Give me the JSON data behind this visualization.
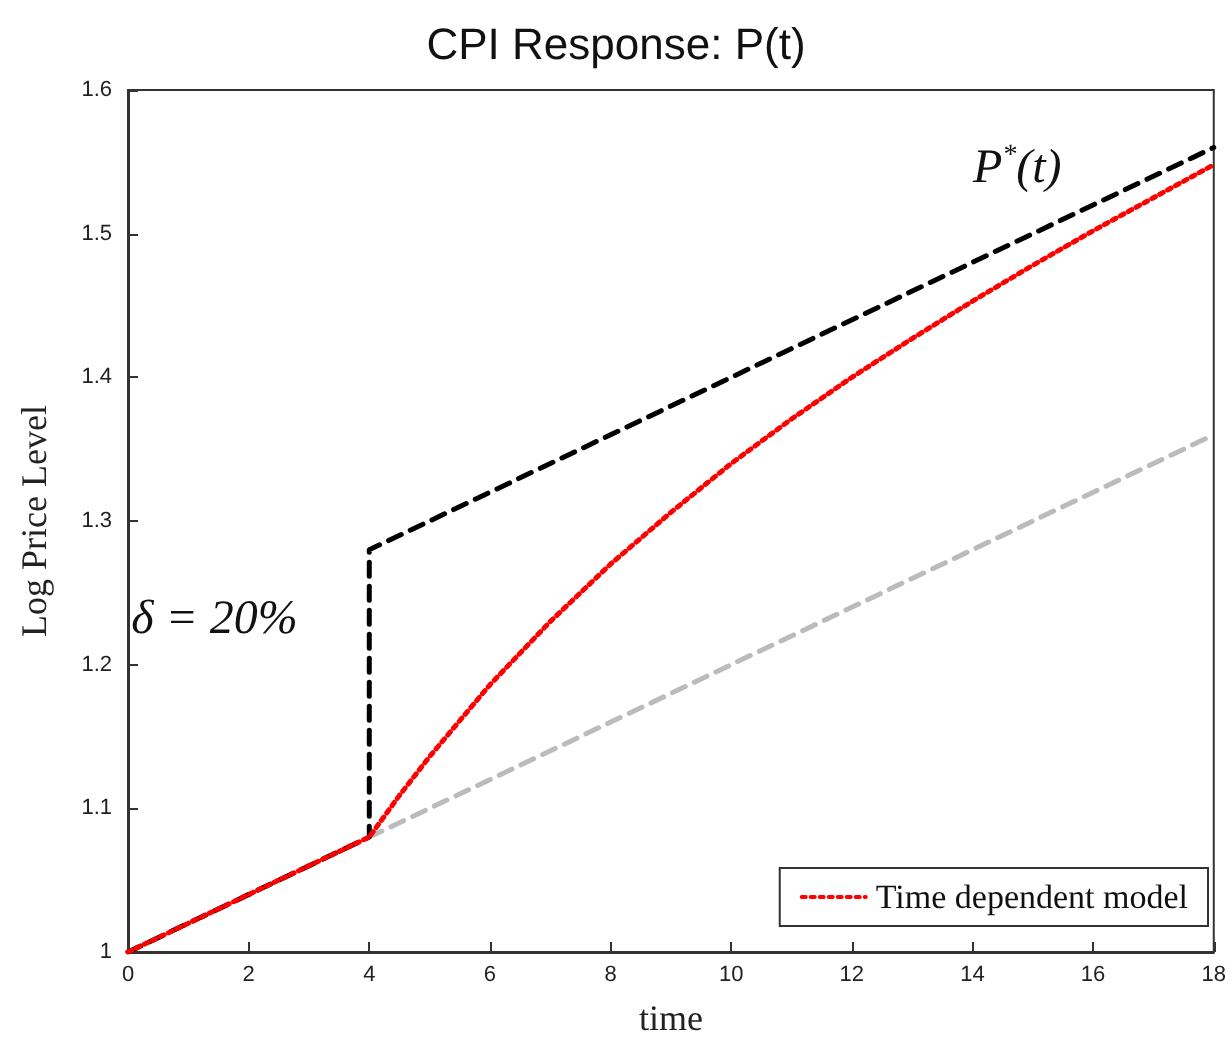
{
  "chart_data": {
    "type": "line",
    "title": "CPI Response: P(t)",
    "xlabel": "time",
    "ylabel": "Log Price Level",
    "xlim": [
      0,
      18
    ],
    "xticks": [
      0,
      2,
      4,
      6,
      8,
      10,
      12,
      14,
      16,
      18
    ],
    "ylim": [
      1,
      1.6
    ],
    "yticks": [
      1,
      1.1,
      1.2,
      1.3,
      1.4,
      1.5,
      1.6
    ],
    "grid": false,
    "legend": "bottom right",
    "marker": "none",
    "series": [
      {
        "color": "#bbbbbb",
        "line_style": "dashed",
        "x": [
          4,
          18
        ],
        "values": [
          1.08,
          1.36
        ]
      },
      {
        "color": "#000000",
        "line_style": "dashed",
        "x": [
          0,
          4,
          4,
          18
        ],
        "values": [
          1,
          1.08,
          1.28,
          1.56
        ]
      },
      {
        "name": "Time dependent model",
        "color": "#ff0000",
        "line_style": "dotted",
        "x": [
          0,
          4,
          4.5,
          5,
          6,
          7,
          8,
          9,
          10,
          11,
          12,
          13,
          14,
          15,
          16,
          17,
          18
        ],
        "values": [
          1,
          1.08,
          1.109,
          1.136,
          1.186,
          1.23,
          1.27,
          1.306,
          1.34,
          1.371,
          1.4,
          1.427,
          1.453,
          1.478,
          1.502,
          1.525,
          1.548
        ]
      }
    ],
    "annotations": [
      "P$^{*}$(t)",
      "δ = 20%"
    ]
  }
}
